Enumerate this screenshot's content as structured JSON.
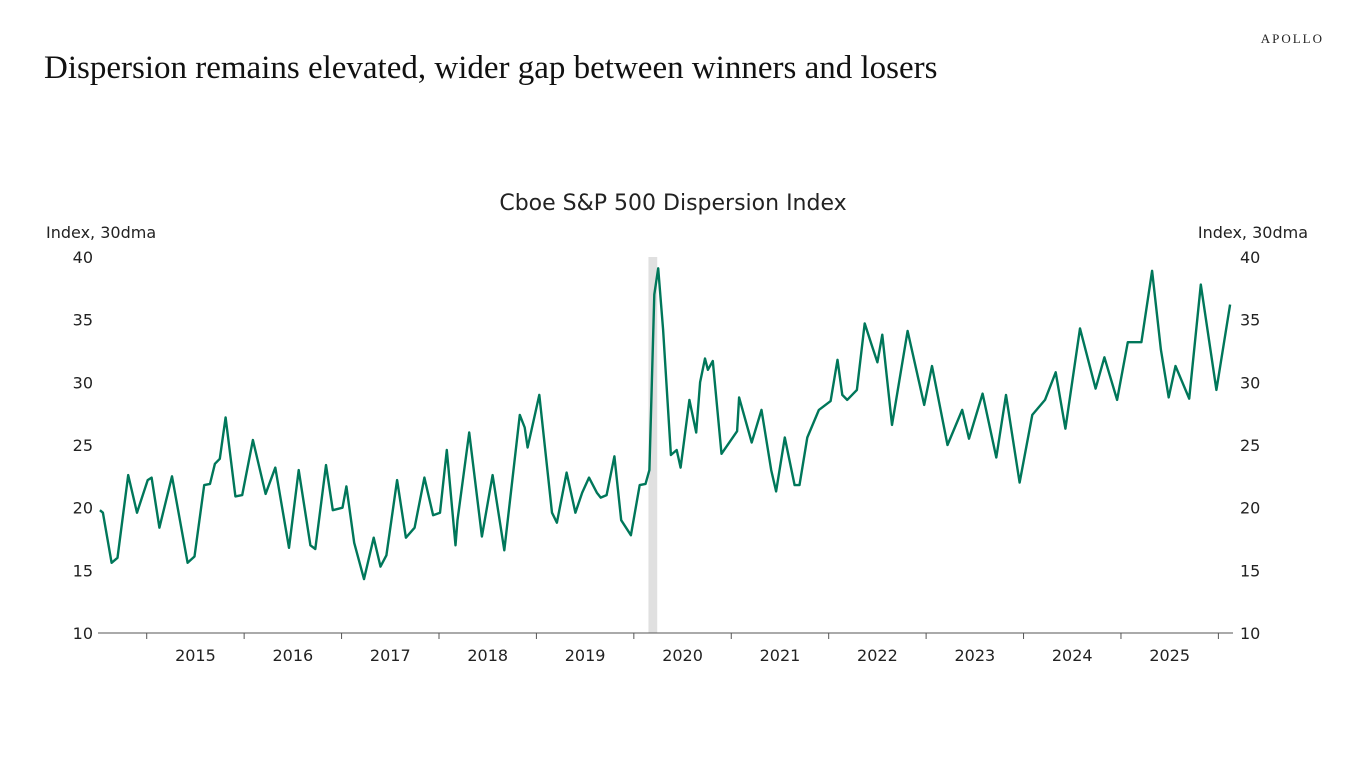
{
  "header": {
    "logo": "APOLLO",
    "title": "Dispersion remains elevated, wider gap between winners and losers"
  },
  "chart_data": {
    "type": "line",
    "title": "Cboe S&P 500 Dispersion Index",
    "ylabel_left": "Index, 30dma",
    "ylabel_right": "Index, 30dma",
    "ylim": [
      10,
      40
    ],
    "yticks": [
      10,
      15,
      20,
      25,
      30,
      35,
      40
    ],
    "xlim": [
      2014.5,
      2026.15
    ],
    "xtick_labels": [
      "2015",
      "2016",
      "2017",
      "2018",
      "2019",
      "2020",
      "2021",
      "2022",
      "2023",
      "2024",
      "2025"
    ],
    "grid": false,
    "legend": "none",
    "line_color": "#00775A",
    "shading": {
      "start": 2020.15,
      "end": 2020.24,
      "color": "#E0E0E0"
    },
    "series": [
      {
        "x": [
          2014.52,
          2014.55,
          2014.64,
          2014.7,
          2014.81,
          2014.9,
          2015.01,
          2015.05,
          2015.13,
          2015.26,
          2015.42,
          2015.49,
          2015.59,
          2015.65,
          2015.7,
          2015.75,
          2015.81,
          2015.91,
          2015.98,
          2016.09,
          2016.22,
          2016.32,
          2016.46,
          2016.56,
          2016.68,
          2016.73,
          2016.84,
          2016.91,
          2017.01,
          2017.05,
          2017.13,
          2017.23,
          2017.33,
          2017.4,
          2017.46,
          2017.57,
          2017.66,
          2017.75,
          2017.85,
          2017.94,
          2018.01,
          2018.08,
          2018.17,
          2018.19,
          2018.31,
          2018.44,
          2018.55,
          2018.67,
          2018.83,
          2018.88,
          2018.91,
          2018.95,
          2019.03,
          2019.16,
          2019.21,
          2019.31,
          2019.4,
          2019.47,
          2019.54,
          2019.62,
          2019.66,
          2019.72,
          2019.8,
          2019.87,
          2019.97,
          2020.06,
          2020.12,
          2020.16,
          2020.21,
          2020.25,
          2020.3,
          2020.38,
          2020.44,
          2020.48,
          2020.57,
          2020.64,
          2020.68,
          2020.73,
          2020.76,
          2020.81,
          2020.9,
          2021.06,
          2021.08,
          2021.21,
          2021.31,
          2021.41,
          2021.46,
          2021.55,
          2021.65,
          2021.7,
          2021.78,
          2021.9,
          2022.02,
          2022.09,
          2022.14,
          2022.19,
          2022.29,
          2022.37,
          2022.44,
          2022.5,
          2022.55,
          2022.65,
          2022.81,
          2022.98,
          2023.06,
          2023.22,
          2023.37,
          2023.44,
          2023.58,
          2023.72,
          2023.82,
          2023.96,
          2024.09,
          2024.22,
          2024.33,
          2024.43,
          2024.58,
          2024.74,
          2024.83,
          2024.96,
          2025.07,
          2025.21,
          2025.32,
          2025.41,
          2025.49,
          2025.56,
          2025.7,
          2025.82,
          2025.98,
          2026.12
        ],
        "y": [
          19.8,
          19.6,
          15.6,
          16.0,
          22.6,
          19.6,
          22.2,
          22.4,
          18.4,
          22.5,
          15.6,
          16.1,
          21.8,
          21.9,
          23.5,
          23.9,
          27.2,
          20.9,
          21.0,
          25.4,
          21.1,
          23.2,
          16.8,
          23.0,
          17.0,
          16.7,
          23.4,
          19.8,
          20.0,
          21.7,
          17.2,
          14.3,
          17.6,
          15.3,
          16.2,
          22.2,
          17.6,
          18.4,
          22.4,
          19.4,
          19.6,
          24.6,
          17.0,
          19.0,
          26.0,
          17.7,
          22.6,
          16.6,
          27.4,
          26.4,
          24.8,
          26.2,
          29.0,
          19.6,
          18.8,
          22.8,
          19.6,
          21.2,
          22.4,
          21.2,
          20.8,
          21.0,
          24.1,
          19.0,
          17.8,
          21.8,
          21.9,
          23.0,
          37.0,
          39.1,
          34.2,
          24.2,
          24.6,
          23.2,
          28.6,
          26.0,
          30.0,
          31.9,
          31.0,
          31.7,
          24.3,
          26.1,
          28.8,
          25.2,
          27.8,
          23.0,
          21.3,
          25.6,
          21.8,
          21.8,
          25.6,
          27.8,
          28.5,
          31.8,
          29.0,
          28.6,
          29.4,
          34.7,
          33.0,
          31.6,
          33.8,
          26.6,
          34.1,
          28.2,
          31.3,
          25.0,
          27.8,
          25.5,
          29.1,
          24.0,
          29.0,
          22.0,
          27.4,
          28.6,
          30.8,
          26.3,
          34.3,
          29.5,
          32.0,
          28.6,
          33.2,
          33.2,
          38.9,
          32.6,
          28.8,
          31.3,
          28.7,
          37.8,
          29.4,
          36.2
        ]
      }
    ]
  }
}
